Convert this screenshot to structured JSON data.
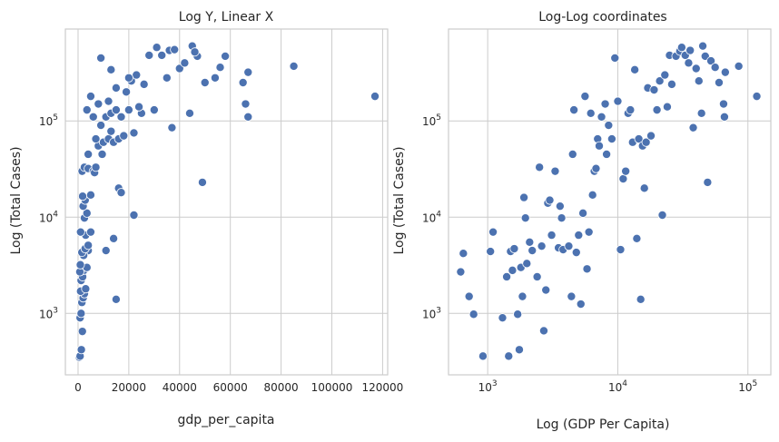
{
  "chart_data": [
    {
      "type": "scatter",
      "title": "Log Y, Linear X",
      "xlabel": "gdp_per_capita",
      "ylabel": "Log (Total Cases)",
      "x_scale": "linear",
      "y_scale": "log",
      "xlim": [
        -5000,
        122000
      ],
      "ylim": [
        230,
        900000
      ],
      "x_ticks": [
        0,
        20000,
        40000,
        60000,
        80000,
        100000,
        120000
      ],
      "x_tick_labels": [
        "0",
        "20000",
        "40000",
        "60000",
        "80000",
        "100000",
        "120000"
      ],
      "y_ticks": [
        1000,
        10000,
        100000
      ],
      "y_tick_labels": [
        "10",
        "10",
        "10"
      ],
      "y_tick_exponents": [
        "3",
        "4",
        "5"
      ],
      "grid": true,
      "color": "#4c72b0",
      "points": [
        [
          500,
          350
        ],
        [
          800,
          360
        ],
        [
          1300,
          420
        ],
        [
          1700,
          650
        ],
        [
          800,
          900
        ],
        [
          1200,
          1000
        ],
        [
          1500,
          1300
        ],
        [
          2000,
          1450
        ],
        [
          2500,
          1600
        ],
        [
          1000,
          1700
        ],
        [
          3000,
          1800
        ],
        [
          1200,
          2200
        ],
        [
          1800,
          2400
        ],
        [
          2300,
          2800
        ],
        [
          700,
          2700
        ],
        [
          3500,
          3000
        ],
        [
          900,
          3200
        ],
        [
          4000,
          4500
        ],
        [
          2200,
          4000
        ],
        [
          1500,
          4300
        ],
        [
          2800,
          4700
        ],
        [
          4000,
          5100
        ],
        [
          3000,
          6500
        ],
        [
          5000,
          7000
        ],
        [
          1000,
          7000
        ],
        [
          2500,
          9800
        ],
        [
          3500,
          11000
        ],
        [
          2000,
          13000
        ],
        [
          2800,
          15000
        ],
        [
          1800,
          16500
        ],
        [
          5000,
          17000
        ],
        [
          1600,
          30000
        ],
        [
          2500,
          33000
        ],
        [
          4000,
          32000
        ],
        [
          6000,
          30000
        ],
        [
          6500,
          29000
        ],
        [
          7000,
          33000
        ],
        [
          4000,
          45000
        ],
        [
          9500,
          45000
        ],
        [
          11000,
          4500
        ],
        [
          14000,
          6000
        ],
        [
          15000,
          1400
        ],
        [
          22000,
          10500
        ],
        [
          49000,
          23000
        ],
        [
          8000,
          55000
        ],
        [
          10000,
          60000
        ],
        [
          12000,
          65000
        ],
        [
          14000,
          60000
        ],
        [
          16000,
          65000
        ],
        [
          18000,
          70000
        ],
        [
          7000,
          65000
        ],
        [
          13000,
          78000
        ],
        [
          9000,
          90000
        ],
        [
          11000,
          110000
        ],
        [
          13000,
          120000
        ],
        [
          15000,
          130000
        ],
        [
          6000,
          110000
        ],
        [
          3500,
          130000
        ],
        [
          17000,
          110000
        ],
        [
          20000,
          130000
        ],
        [
          25000,
          120000
        ],
        [
          30000,
          130000
        ],
        [
          5000,
          180000
        ],
        [
          8000,
          150000
        ],
        [
          12000,
          160000
        ],
        [
          15000,
          220000
        ],
        [
          19000,
          200000
        ],
        [
          21000,
          260000
        ],
        [
          23000,
          300000
        ],
        [
          13000,
          340000
        ],
        [
          9000,
          450000
        ],
        [
          20000,
          280000
        ],
        [
          28000,
          480000
        ],
        [
          31000,
          580000
        ],
        [
          33000,
          480000
        ],
        [
          36000,
          540000
        ],
        [
          38000,
          550000
        ],
        [
          40000,
          350000
        ],
        [
          42000,
          400000
        ],
        [
          45000,
          600000
        ],
        [
          47000,
          470000
        ],
        [
          35000,
          280000
        ],
        [
          37000,
          85000
        ],
        [
          44000,
          120000
        ],
        [
          50000,
          250000
        ],
        [
          54000,
          280000
        ],
        [
          56000,
          360000
        ],
        [
          58000,
          470000
        ],
        [
          65000,
          250000
        ],
        [
          66000,
          150000
        ],
        [
          67000,
          320000
        ],
        [
          67000,
          110000
        ],
        [
          85000,
          370000
        ],
        [
          117000,
          180000
        ],
        [
          26000,
          240000
        ],
        [
          24000,
          140000
        ],
        [
          22000,
          75000
        ],
        [
          16000,
          20000
        ],
        [
          17000,
          18000
        ],
        [
          46000,
          520000
        ]
      ]
    },
    {
      "type": "scatter",
      "title": "Log-Log coordinates",
      "xlabel": "Log (GDP Per Capita)",
      "ylabel": "Log (Total Cases)",
      "x_scale": "log",
      "y_scale": "log",
      "xlim": [
        500,
        150000
      ],
      "ylim": [
        230,
        900000
      ],
      "x_ticks": [
        1000,
        10000,
        100000
      ],
      "x_tick_labels": [
        "10",
        "10",
        "10"
      ],
      "x_tick_exponents": [
        "3",
        "4",
        "5"
      ],
      "y_ticks": [
        1000,
        10000,
        100000
      ],
      "y_tick_labels": [
        "10",
        "10",
        "10"
      ],
      "y_tick_exponents": [
        "3",
        "4",
        "5"
      ],
      "grid": true,
      "color": "#4c72b0",
      "points": [
        [
          620,
          2700
        ],
        [
          650,
          4200
        ],
        [
          720,
          1500
        ],
        [
          780,
          980
        ],
        [
          920,
          360
        ],
        [
          1050,
          4400
        ],
        [
          1100,
          7000
        ],
        [
          1300,
          900
        ],
        [
          1400,
          2400
        ],
        [
          1450,
          360
        ],
        [
          1500,
          4400
        ],
        [
          1550,
          2800
        ],
        [
          1600,
          4700
        ],
        [
          1700,
          980
        ],
        [
          1750,
          420
        ],
        [
          1800,
          3000
        ],
        [
          1850,
          1500
        ],
        [
          1900,
          16000
        ],
        [
          1950,
          9800
        ],
        [
          2000,
          3300
        ],
        [
          2100,
          5500
        ],
        [
          2200,
          4500
        ],
        [
          2400,
          2400
        ],
        [
          2500,
          33000
        ],
        [
          2600,
          5000
        ],
        [
          2700,
          660
        ],
        [
          2800,
          1750
        ],
        [
          2900,
          14000
        ],
        [
          3000,
          15000
        ],
        [
          3100,
          6500
        ],
        [
          3300,
          30000
        ],
        [
          3500,
          4800
        ],
        [
          3600,
          13000
        ],
        [
          3700,
          9800
        ],
        [
          3800,
          4600
        ],
        [
          4200,
          5000
        ],
        [
          4400,
          1500
        ],
        [
          4500,
          45000
        ],
        [
          4600,
          130000
        ],
        [
          4800,
          4300
        ],
        [
          5000,
          6500
        ],
        [
          5200,
          1250
        ],
        [
          5400,
          11000
        ],
        [
          5600,
          180000
        ],
        [
          5800,
          2900
        ],
        [
          6000,
          7000
        ],
        [
          6200,
          120000
        ],
        [
          6400,
          17000
        ],
        [
          6600,
          30000
        ],
        [
          6800,
          32000
        ],
        [
          7000,
          65000
        ],
        [
          7200,
          55000
        ],
        [
          7500,
          110000
        ],
        [
          8000,
          150000
        ],
        [
          8200,
          45000
        ],
        [
          8500,
          90000
        ],
        [
          9000,
          65000
        ],
        [
          9500,
          450000
        ],
        [
          10000,
          160000
        ],
        [
          10500,
          4600
        ],
        [
          11000,
          25000
        ],
        [
          11500,
          30000
        ],
        [
          12000,
          120000
        ],
        [
          12500,
          130000
        ],
        [
          13000,
          60000
        ],
        [
          13500,
          340000
        ],
        [
          14000,
          6000
        ],
        [
          14500,
          65000
        ],
        [
          15000,
          1400
        ],
        [
          15500,
          55000
        ],
        [
          16000,
          20000
        ],
        [
          16500,
          60000
        ],
        [
          17000,
          220000
        ],
        [
          18000,
          70000
        ],
        [
          19000,
          210000
        ],
        [
          20000,
          130000
        ],
        [
          21000,
          260000
        ],
        [
          22000,
          10500
        ],
        [
          23000,
          300000
        ],
        [
          24000,
          140000
        ],
        [
          25000,
          480000
        ],
        [
          26000,
          240000
        ],
        [
          28000,
          470000
        ],
        [
          30000,
          530000
        ],
        [
          31000,
          580000
        ],
        [
          33000,
          480000
        ],
        [
          35000,
          400000
        ],
        [
          36000,
          540000
        ],
        [
          38000,
          85000
        ],
        [
          40000,
          350000
        ],
        [
          42000,
          260000
        ],
        [
          44000,
          120000
        ],
        [
          45000,
          600000
        ],
        [
          47000,
          470000
        ],
        [
          49000,
          23000
        ],
        [
          52000,
          420000
        ],
        [
          56000,
          360000
        ],
        [
          60000,
          250000
        ],
        [
          65000,
          150000
        ],
        [
          66000,
          110000
        ],
        [
          67000,
          320000
        ],
        [
          85000,
          370000
        ],
        [
          117000,
          180000
        ]
      ]
    }
  ]
}
